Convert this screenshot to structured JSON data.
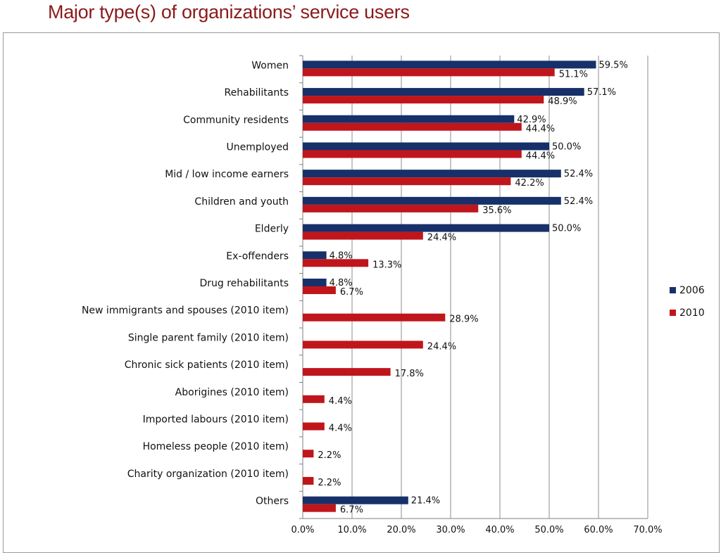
{
  "slide": {
    "title": "Major type(s) of organizations’ service users"
  },
  "colors": {
    "series_2006": "#17306A",
    "series_2010": "#C0161B",
    "grid": "#8c8c8c",
    "title": "#8B1A1A"
  },
  "chart_data": {
    "type": "bar",
    "orientation": "horizontal",
    "categories": [
      "Women",
      "Rehabilitants",
      "Community residents",
      "Unemployed",
      "Mid / low income earners",
      "Children and youth",
      "Elderly",
      "Ex-offenders",
      "Drug rehabilitants",
      "New immigrants and spouses (2010 item)",
      "Single parent family (2010 item)",
      "Chronic sick patients (2010 item)",
      "Aborigines (2010 item)",
      "Imported labours (2010 item)",
      "Homeless people (2010 item)",
      "Charity organization (2010 item)",
      "Others"
    ],
    "series": [
      {
        "name": "2006",
        "values": [
          59.5,
          57.1,
          42.9,
          50.0,
          52.4,
          52.4,
          50.0,
          4.8,
          4.8,
          null,
          null,
          null,
          null,
          null,
          null,
          null,
          21.4
        ]
      },
      {
        "name": "2010",
        "values": [
          51.1,
          48.9,
          44.4,
          44.4,
          42.2,
          35.6,
          24.4,
          13.3,
          6.7,
          28.9,
          24.4,
          17.8,
          4.4,
          4.4,
          2.2,
          2.2,
          6.7
        ]
      }
    ],
    "xlim": [
      0,
      70
    ],
    "xticks": [
      "0.0%",
      "10.0%",
      "20.0%",
      "30.0%",
      "40.0%",
      "50.0%",
      "60.0%",
      "70.0%"
    ],
    "grid": true,
    "legend_position": "right"
  }
}
